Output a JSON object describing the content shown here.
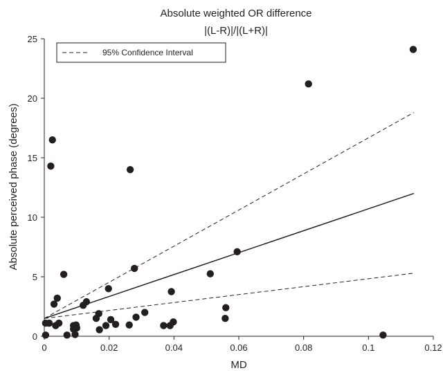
{
  "chart_data": {
    "type": "scatter",
    "title": "Absolute weighted OR difference",
    "subtitle": "|(L-R)|/|(L+R)|",
    "xlabel": "MD",
    "ylabel": "Absolute perceived phase (degrees)",
    "xlim": [
      0,
      0.12
    ],
    "ylim": [
      0,
      25
    ],
    "xticks": [
      0,
      0.02,
      0.04,
      0.06,
      0.08,
      0.1,
      0.12
    ],
    "xtick_labels": [
      "0",
      "0.02",
      "0.04",
      "0.06",
      "0.08",
      "0.1",
      "0.12"
    ],
    "yticks": [
      0,
      5,
      10,
      15,
      20,
      25
    ],
    "ytick_labels": [
      "0",
      "5",
      "10",
      "15",
      "20",
      "25"
    ],
    "grid": false,
    "legend": {
      "position": "top-left",
      "entries": [
        "95% Confidence Interval"
      ]
    },
    "points": [
      [
        0.0004,
        0.1
      ],
      [
        0.0004,
        1.1
      ],
      [
        0.0015,
        1.1
      ],
      [
        0.002,
        14.3
      ],
      [
        0.0025,
        16.5
      ],
      [
        0.003,
        2.7
      ],
      [
        0.0035,
        0.9
      ],
      [
        0.004,
        3.2
      ],
      [
        0.0045,
        1.1
      ],
      [
        0.006,
        5.2
      ],
      [
        0.007,
        0.1
      ],
      [
        0.009,
        0.6
      ],
      [
        0.009,
        0.9
      ],
      [
        0.0095,
        0.15
      ],
      [
        0.0098,
        0.95
      ],
      [
        0.01,
        0.7
      ],
      [
        0.012,
        2.6
      ],
      [
        0.013,
        2.9
      ],
      [
        0.016,
        1.5
      ],
      [
        0.0168,
        1.9
      ],
      [
        0.017,
        0.55
      ],
      [
        0.019,
        0.9
      ],
      [
        0.0198,
        4.0
      ],
      [
        0.0205,
        1.4
      ],
      [
        0.022,
        1.0
      ],
      [
        0.0262,
        0.95
      ],
      [
        0.0265,
        14.0
      ],
      [
        0.0278,
        5.7
      ],
      [
        0.0283,
        1.6
      ],
      [
        0.031,
        2.0
      ],
      [
        0.0368,
        0.9
      ],
      [
        0.0388,
        0.9
      ],
      [
        0.0392,
        3.75
      ],
      [
        0.0398,
        1.2
      ],
      [
        0.0512,
        5.25
      ],
      [
        0.0558,
        1.5
      ],
      [
        0.056,
        2.4
      ],
      [
        0.0595,
        7.1
      ],
      [
        0.0815,
        21.2
      ],
      [
        0.1045,
        0.1
      ],
      [
        0.1138,
        24.1
      ]
    ],
    "fit_line": [
      [
        0,
        1.5
      ],
      [
        0.114,
        12.0
      ]
    ],
    "ci_upper": [
      [
        0,
        1.5
      ],
      [
        0.114,
        18.8
      ]
    ],
    "ci_lower": [
      [
        0,
        1.5
      ],
      [
        0.114,
        5.3
      ]
    ]
  }
}
